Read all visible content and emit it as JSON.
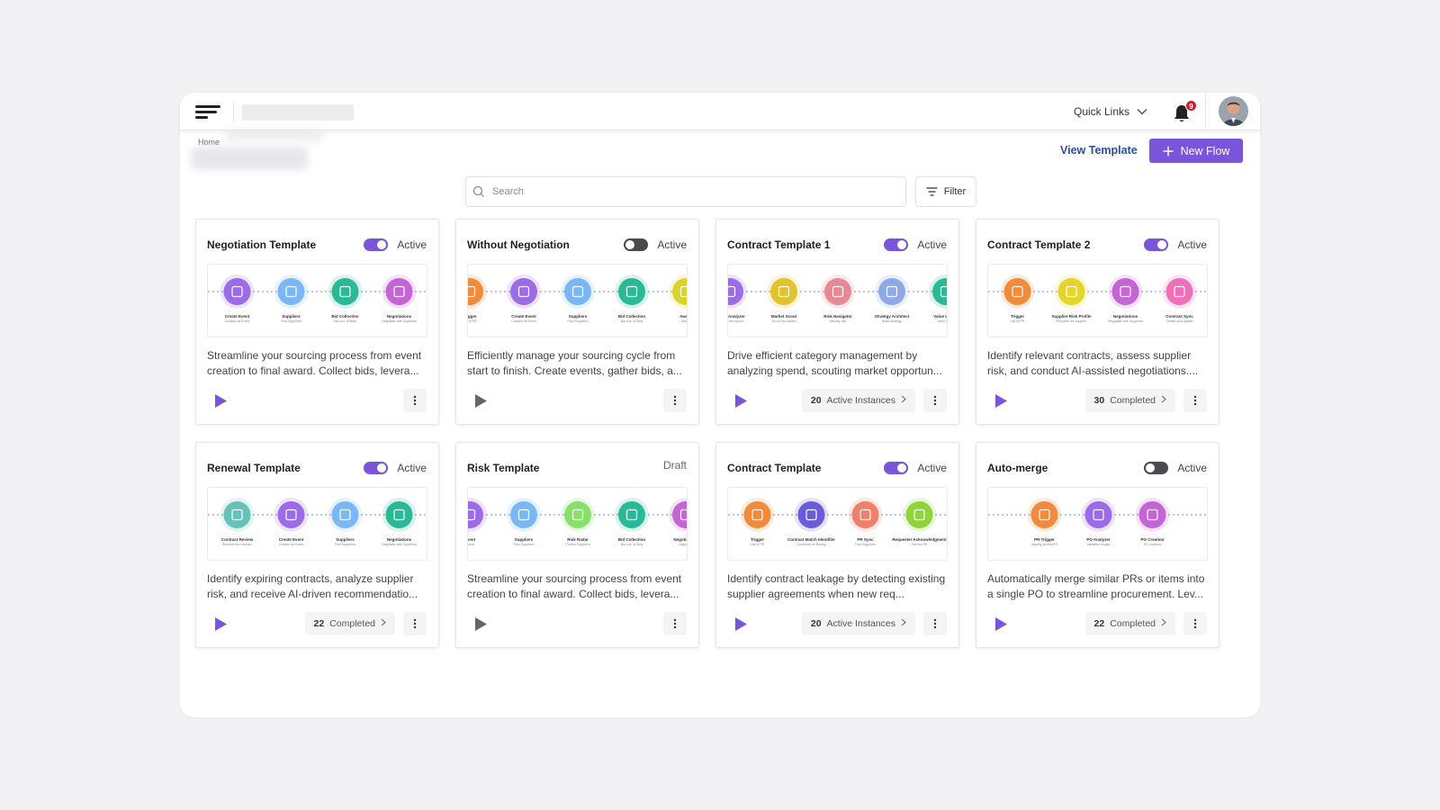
{
  "topbar": {
    "quick_links": "Quick Links",
    "notification_count": "9"
  },
  "breadcrumb": "Home",
  "actions": {
    "view_template": "View Template",
    "new_flow": "New Flow"
  },
  "search": {
    "placeholder": "Search"
  },
  "filter_label": "Filter",
  "colors": {
    "accent": "#7b55d9",
    "link": "#2a4fa1",
    "badge": "#d11a2a"
  },
  "cards": [
    {
      "title": "Negotiation Template",
      "status": "Active",
      "toggle": "on",
      "description": "Streamline your sourcing process from event creation to final award. Collect bids, levera...",
      "stat": null,
      "nodes": [
        {
          "color": "#9b6be8",
          "label": "Create Event",
          "sub": "Creates an Event"
        },
        {
          "color": "#7ab8f5",
          "label": "Suppliers",
          "sub": "Find Suppliers"
        },
        {
          "color": "#2ab996",
          "label": "Bid Collection",
          "sub": "Bid coll. of Bids"
        },
        {
          "color": "#c464d6",
          "label": "Negotiations",
          "sub": "Negotiate with Suppliers"
        }
      ]
    },
    {
      "title": "Without Negotiation",
      "status": "Active",
      "toggle": "off",
      "description": "Efficiently manage your sourcing cycle from start to finish. Create events, gather bids, a...",
      "stat": null,
      "nodes": [
        {
          "color": "#f08a3c",
          "label": "Trigger",
          "sub": "List of PR"
        },
        {
          "color": "#9b6be8",
          "label": "Create Event",
          "sub": "Creates an Event"
        },
        {
          "color": "#7ab8f5",
          "label": "Suppliers",
          "sub": "Find Suppliers"
        },
        {
          "color": "#2ab996",
          "label": "Bid Collection",
          "sub": "Bid coll. of Bids"
        },
        {
          "color": "#d8d42a",
          "label": "Award",
          "sub": "Award"
        }
      ]
    },
    {
      "title": "Contract Template 1",
      "status": "Active",
      "toggle": "on",
      "description": "Drive efficient category management by analyzing spend, scouting market opportun...",
      "stat": {
        "count": "20",
        "label": "Active Instances"
      },
      "nodes": [
        {
          "color": "#9b6be8",
          "label": "Spend Analyzer",
          "sub": "Analyze the spend"
        },
        {
          "color": "#e3c22f",
          "label": "Market Scout",
          "sub": "Scout the market"
        },
        {
          "color": "#e58a94",
          "label": "Risk Navigator",
          "sub": "Identify risk"
        },
        {
          "color": "#8ea9e6",
          "label": "Strategy Architect",
          "sub": "Build strategy"
        },
        {
          "color": "#2ab996",
          "label": "Value Levers",
          "sub": "Value levers"
        }
      ]
    },
    {
      "title": "Contract Template 2",
      "status": "Active",
      "toggle": "on",
      "description": "Identify relevant contracts, assess supplier risk, and conduct AI-assisted negotiations....",
      "stat": {
        "count": "30",
        "label": "Completed"
      },
      "nodes": [
        {
          "color": "#f08a3c",
          "label": "Trigger",
          "sub": "List of PR"
        },
        {
          "color": "#e3d52c",
          "label": "Supplier Risk Profile",
          "sub": "Provides the supplier"
        },
        {
          "color": "#c464d6",
          "label": "Negotiations",
          "sub": "Negotiate with Suppliers"
        },
        {
          "color": "#f06fb8",
          "label": "Contract Sync",
          "sub": "Create and update"
        }
      ]
    },
    {
      "title": "Renewal Template",
      "status": "Active",
      "toggle": "on",
      "description": "Identify expiring contracts, analyze supplier risk, and receive AI-driven recommendatio...",
      "stat": {
        "count": "22",
        "label": "Completed"
      },
      "nodes": [
        {
          "color": "#66c2b8",
          "label": "Contract Review",
          "sub": "Reviews the contract"
        },
        {
          "color": "#9b6be8",
          "label": "Create Event",
          "sub": "Creates an Event"
        },
        {
          "color": "#7ab8f5",
          "label": "Suppliers",
          "sub": "Find Suppliers"
        },
        {
          "color": "#2ab996",
          "label": "Negotiations",
          "sub": "Negotiate with Suppliers"
        }
      ]
    },
    {
      "title": "Risk Template",
      "status": "Draft",
      "toggle": "none",
      "description": "Streamline your sourcing process from event creation to final award. Collect bids, levera...",
      "stat": null,
      "nodes": [
        {
          "color": "#9b6be8",
          "label": "Event",
          "sub": "Event"
        },
        {
          "color": "#7ab8f5",
          "label": "Suppliers",
          "sub": "Find Suppliers"
        },
        {
          "color": "#86e06a",
          "label": "Risk Radar",
          "sub": "Protect Suppliers"
        },
        {
          "color": "#2ab996",
          "label": "Bid Collection",
          "sub": "Bid coll. of Bids"
        },
        {
          "color": "#c464d6",
          "label": "Negotiations",
          "sub": "Negotiate"
        }
      ]
    },
    {
      "title": "Contract Template",
      "status": "Active",
      "toggle": "on",
      "description": "Identify contract leakage by detecting existing supplier agreements when new req...",
      "stat": {
        "count": "20",
        "label": "Active Instances"
      },
      "nodes": [
        {
          "color": "#f08a3c",
          "label": "Trigger",
          "sub": "List of PR"
        },
        {
          "color": "#6a5bd8",
          "label": "Contract Match Identifier",
          "sub": "Contracts on Buying"
        },
        {
          "color": "#f0806a",
          "label": "PR Sync",
          "sub": "Find Suppliers"
        },
        {
          "color": "#8fd43a",
          "label": "Requester Acknowledgment",
          "sub": "Get the PR"
        }
      ]
    },
    {
      "title": "Auto-merge",
      "status": "Active",
      "toggle": "off",
      "description": "Automatically merge similar PRs or items into a single PO to streamline procurement. Lev...",
      "stat": {
        "count": "22",
        "label": "Completed"
      },
      "nodes": [
        {
          "color": "#f08a3c",
          "label": "PR Trigger",
          "sub": "Identify similar PR"
        },
        {
          "color": "#9b6be8",
          "label": "PO Analyzer",
          "sub": "Identifies similar"
        },
        {
          "color": "#c464d6",
          "label": "PO Creation",
          "sub": "PO creation"
        }
      ]
    }
  ]
}
